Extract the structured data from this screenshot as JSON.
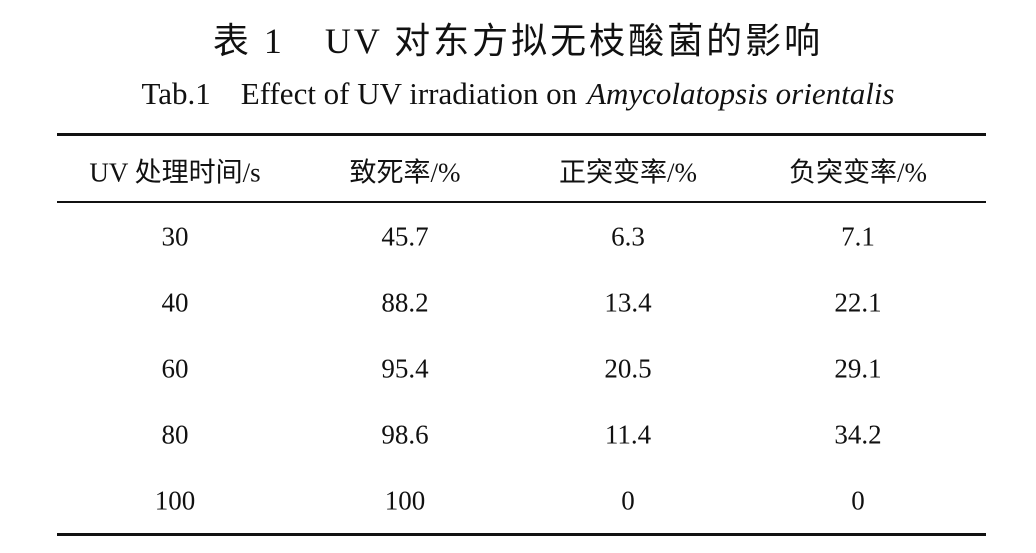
{
  "title": {
    "label": "表 1",
    "text": "UV 对东方拟无枝酸菌的影响"
  },
  "subtitle": {
    "label": "Tab.1",
    "text": "Effect of UV irradiation on",
    "species": "Amycolatopsis orientalis"
  },
  "table": {
    "headers": [
      "UV 处理时间/s",
      "致死率/%",
      "正突变率/%",
      "负突变率/%"
    ],
    "rows": [
      [
        30,
        45.7,
        6.3,
        7.1
      ],
      [
        40,
        88.2,
        13.4,
        22.1
      ],
      [
        60,
        95.4,
        20.5,
        29.1
      ],
      [
        80,
        98.6,
        11.4,
        34.2
      ],
      [
        100,
        100,
        0,
        0
      ]
    ]
  }
}
